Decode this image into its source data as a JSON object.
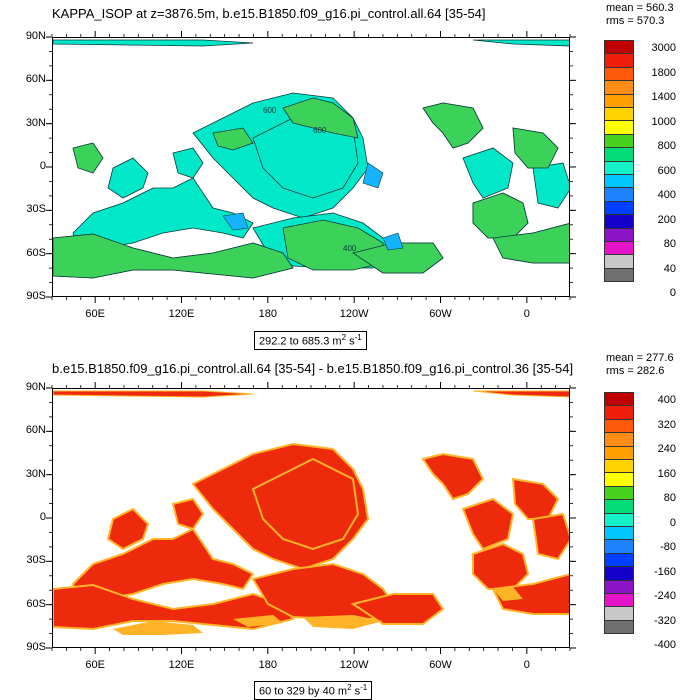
{
  "chart_data": [
    {
      "type": "heatmap",
      "title": "KAPPA_ISOP at z=3876.5m, b.e15.B1850.f09_g16.pi_control.all.64 [35-54]",
      "stats": {
        "mean": "mean = 560.3",
        "rms": "rms = 570.3"
      },
      "ylabels": [
        "90N",
        "60N",
        "30N",
        "0",
        "30S",
        "60S",
        "90S"
      ],
      "xlabels": [
        "60E",
        "120E",
        "180",
        "120W",
        "60W",
        "0"
      ],
      "range": {
        "text": "292.2 to 685.3 m",
        "unit_exp": "2",
        "unit_tail": " s",
        "unit_tail_exp": "-1"
      },
      "contour_labels": [
        "600",
        "600",
        "400"
      ],
      "colorbar": {
        "labels": [
          "3000",
          "1800",
          "1400",
          "1000",
          "800",
          "600",
          "400",
          "200",
          "80",
          "40",
          "0"
        ],
        "colors": [
          "#c00000",
          "#ee1e0a",
          "#ff5a0a",
          "#ff8c14",
          "#ffa000",
          "#ffd200",
          "#ffff00",
          "#46d21e",
          "#00dc78",
          "#14f0c8",
          "#00c8ff",
          "#1e82ff",
          "#0041ff",
          "#1400c8",
          "#8c14c8",
          "#e614c8",
          "#c8c8c8",
          "#707070"
        ]
      }
    },
    {
      "type": "heatmap",
      "title": "b.e15.B1850.f09_g16.pi_control.all.64 [35-54] - b.e15.B1850.f09_g16.pi_control.36 [35-54]",
      "stats": {
        "mean": "mean = 277.6",
        "rms": "rms = 282.6"
      },
      "ylabels": [
        "90N",
        "60N",
        "30N",
        "0",
        "30S",
        "60S",
        "90S"
      ],
      "xlabels": [
        "60E",
        "120E",
        "180",
        "120W",
        "60W",
        "0"
      ],
      "range": {
        "text": "60 to 329 by 40 m",
        "unit_exp": "2",
        "unit_tail": " s",
        "unit_tail_exp": "-1"
      },
      "colorbar": {
        "labels": [
          "400",
          "320",
          "240",
          "160",
          "80",
          "0",
          "-80",
          "-160",
          "-240",
          "-320",
          "-400"
        ],
        "colors": [
          "#c00000",
          "#ee1e0a",
          "#ff5a0a",
          "#ff8c14",
          "#ffa000",
          "#ffd200",
          "#ffff00",
          "#46d21e",
          "#00dc78",
          "#14f0c8",
          "#00c8ff",
          "#1e82ff",
          "#0041ff",
          "#1400c8",
          "#8c14c8",
          "#e614c8",
          "#c8c8c8",
          "#707070"
        ]
      }
    }
  ],
  "colors": {
    "top_fill_main": "#00e8c8",
    "top_fill_high": "#3cd25a",
    "top_fill_low": "#14b4ff",
    "bottom_fill_main": "#ee2a0c",
    "bottom_fill_edge": "#ffb428",
    "contour": "#0a3a3a"
  }
}
